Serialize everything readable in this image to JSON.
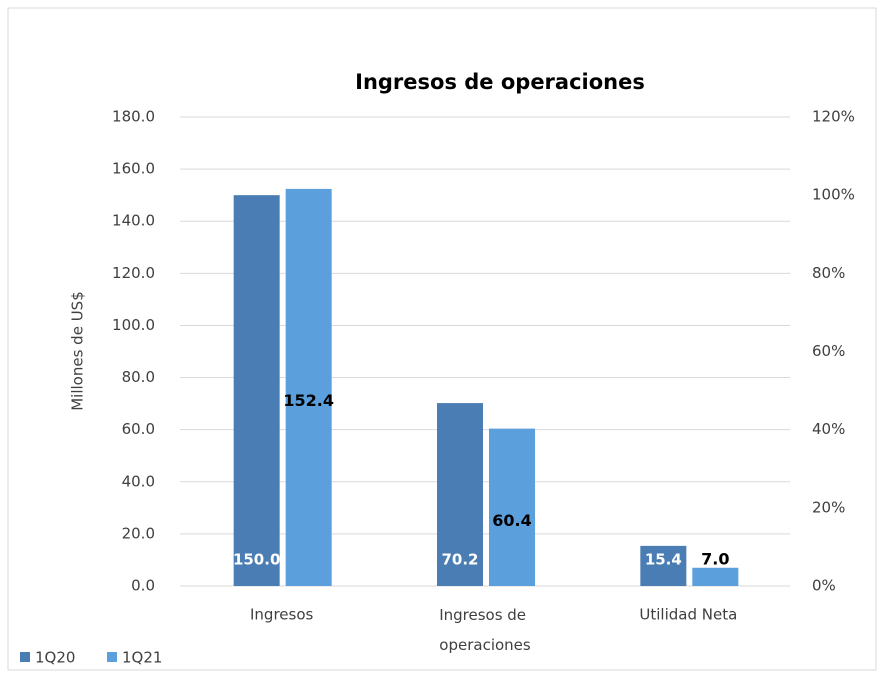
{
  "chart_data": {
    "type": "bar",
    "title": "Ingresos de operaciones",
    "y_label": "Millones de US$",
    "categories": [
      "Ingresos",
      "Ingresos de operaciones",
      "Utilidad Neta"
    ],
    "series": [
      {
        "name": "1Q20",
        "color": "#4a7db3",
        "values": [
          150.0,
          70.2,
          15.4
        ],
        "value_labels": [
          "150.0",
          "70.2",
          "15.4"
        ]
      },
      {
        "name": "1Q21",
        "color": "#5b9fdc",
        "values": [
          152.4,
          60.4,
          7.0
        ],
        "value_labels": [
          "152.4",
          "60.4",
          "7.0"
        ]
      }
    ],
    "ylim": [
      0,
      180
    ],
    "yticks": [
      {
        "value": 0,
        "label": "0.0"
      },
      {
        "value": 20,
        "label": "20.0"
      },
      {
        "value": 40,
        "label": "40.0"
      },
      {
        "value": 60,
        "label": "60.0"
      },
      {
        "value": 80,
        "label": "80.0"
      },
      {
        "value": 100,
        "label": "100.0"
      },
      {
        "value": 120,
        "label": "120.0"
      },
      {
        "value": 140,
        "label": "140.0"
      },
      {
        "value": 160,
        "label": "160.0"
      },
      {
        "value": 180,
        "label": "180.0"
      }
    ],
    "y2lim": [
      0,
      120
    ],
    "y2ticks": [
      {
        "value": 0,
        "label": "0%"
      },
      {
        "value": 20,
        "label": "20%"
      },
      {
        "value": 40,
        "label": "40%"
      },
      {
        "value": 60,
        "label": "60%"
      },
      {
        "value": 80,
        "label": "80%"
      },
      {
        "value": 100,
        "label": "100%"
      },
      {
        "value": 120,
        "label": "120%"
      }
    ],
    "grid": true,
    "legend": "bottom-left"
  }
}
